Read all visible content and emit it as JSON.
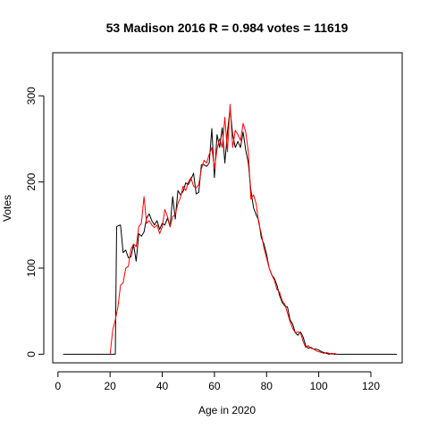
{
  "chart_data": {
    "type": "line",
    "title": "53 Madison 2016 R = 0.984 votes = 11619",
    "xlabel": "Age in 2020",
    "ylabel": "Votes",
    "xlim": [
      -2,
      132
    ],
    "ylim": [
      -10,
      350
    ],
    "x_ticks": [
      0,
      20,
      40,
      60,
      80,
      100,
      120
    ],
    "y_ticks": [
      0,
      100,
      200,
      300
    ],
    "grid": false,
    "series": [
      {
        "color": "#000000",
        "points": [
          [
            2,
            0
          ],
          [
            22,
            0
          ],
          [
            22.5,
            148
          ],
          [
            23,
            149
          ],
          [
            24,
            150
          ],
          [
            25,
            118
          ],
          [
            26,
            121
          ],
          [
            27,
            112
          ],
          [
            28,
            113
          ],
          [
            29,
            127
          ],
          [
            30,
            108
          ],
          [
            31,
            140
          ],
          [
            32,
            137
          ],
          [
            33,
            142
          ],
          [
            34,
            158
          ],
          [
            35,
            163
          ],
          [
            36,
            155
          ],
          [
            37,
            150
          ],
          [
            38,
            155
          ],
          [
            39,
            145
          ],
          [
            40,
            152
          ],
          [
            41,
            150
          ],
          [
            42,
            158
          ],
          [
            43,
            148
          ],
          [
            44,
            183
          ],
          [
            45,
            157
          ],
          [
            46,
            190
          ],
          [
            47,
            185
          ],
          [
            48,
            189
          ],
          [
            49,
            199
          ],
          [
            50,
            197
          ],
          [
            51,
            203
          ],
          [
            52,
            210
          ],
          [
            53,
            186
          ],
          [
            54,
            188
          ],
          [
            55,
            220
          ],
          [
            56,
            220
          ],
          [
            57,
            218
          ],
          [
            58,
            222
          ],
          [
            59,
            262
          ],
          [
            60,
            205
          ],
          [
            61,
            255
          ],
          [
            62,
            240
          ],
          [
            63,
            263
          ],
          [
            64,
            222
          ],
          [
            65,
            258
          ],
          [
            66,
            285
          ],
          [
            67,
            255
          ],
          [
            68,
            240
          ],
          [
            69,
            247
          ],
          [
            70,
            240
          ],
          [
            71,
            258
          ],
          [
            72,
            237
          ],
          [
            73,
            222
          ],
          [
            74,
            190
          ],
          [
            75,
            170
          ],
          [
            76,
            162
          ],
          [
            77,
            155
          ],
          [
            78,
            135
          ],
          [
            79,
            128
          ],
          [
            80,
            116
          ],
          [
            81,
            100
          ],
          [
            82,
            92
          ],
          [
            83,
            88
          ],
          [
            84,
            80
          ],
          [
            85,
            68
          ],
          [
            86,
            60
          ],
          [
            87,
            56
          ],
          [
            88,
            55
          ],
          [
            89,
            40
          ],
          [
            90,
            35
          ],
          [
            91,
            25
          ],
          [
            92,
            22
          ],
          [
            93,
            26
          ],
          [
            94,
            20
          ],
          [
            95,
            10
          ],
          [
            96,
            7
          ],
          [
            97,
            8
          ],
          [
            98,
            6
          ],
          [
            99,
            6
          ],
          [
            100,
            5
          ],
          [
            101,
            3
          ],
          [
            102,
            2
          ],
          [
            103,
            1
          ],
          [
            104,
            0
          ],
          [
            105,
            1
          ],
          [
            106,
            0
          ],
          [
            110,
            0
          ],
          [
            130,
            0
          ]
        ]
      },
      {
        "color": "#ff0000",
        "points": [
          [
            20,
            0
          ],
          [
            21,
            28
          ],
          [
            22,
            40
          ],
          [
            23,
            55
          ],
          [
            24,
            80
          ],
          [
            25,
            83
          ],
          [
            26,
            100
          ],
          [
            27,
            102
          ],
          [
            28,
            122
          ],
          [
            29,
            128
          ],
          [
            30,
            125
          ],
          [
            31,
            148
          ],
          [
            32,
            152
          ],
          [
            33,
            183
          ],
          [
            34,
            152
          ],
          [
            35,
            155
          ],
          [
            36,
            150
          ],
          [
            37,
            147
          ],
          [
            38,
            150
          ],
          [
            39,
            140
          ],
          [
            40,
            148
          ],
          [
            41,
            168
          ],
          [
            42,
            160
          ],
          [
            43,
            148
          ],
          [
            44,
            160
          ],
          [
            45,
            162
          ],
          [
            46,
            175
          ],
          [
            47,
            182
          ],
          [
            48,
            195
          ],
          [
            49,
            190
          ],
          [
            50,
            200
          ],
          [
            51,
            205
          ],
          [
            52,
            195
          ],
          [
            53,
            193
          ],
          [
            54,
            197
          ],
          [
            55,
            215
          ],
          [
            56,
            225
          ],
          [
            57,
            222
          ],
          [
            58,
            232
          ],
          [
            59,
            240
          ],
          [
            60,
            215
          ],
          [
            61,
            238
          ],
          [
            62,
            250
          ],
          [
            63,
            240
          ],
          [
            64,
            275
          ],
          [
            65,
            235
          ],
          [
            66,
            290
          ],
          [
            67,
            240
          ],
          [
            68,
            260
          ],
          [
            69,
            255
          ],
          [
            70,
            248
          ],
          [
            71,
            268
          ],
          [
            72,
            258
          ],
          [
            73,
            235
          ],
          [
            74,
            180
          ],
          [
            75,
            185
          ],
          [
            76,
            175
          ],
          [
            77,
            152
          ],
          [
            78,
            140
          ],
          [
            79,
            123
          ],
          [
            80,
            112
          ],
          [
            81,
            100
          ],
          [
            82,
            92
          ],
          [
            83,
            86
          ],
          [
            84,
            75
          ],
          [
            85,
            72
          ],
          [
            86,
            62
          ],
          [
            87,
            58
          ],
          [
            88,
            48
          ],
          [
            89,
            38
          ],
          [
            90,
            30
          ],
          [
            91,
            25
          ],
          [
            92,
            26
          ],
          [
            93,
            25
          ],
          [
            94,
            15
          ],
          [
            95,
            8
          ],
          [
            96,
            10
          ],
          [
            97,
            7
          ],
          [
            98,
            6
          ],
          [
            99,
            4
          ],
          [
            100,
            3
          ],
          [
            101,
            2
          ],
          [
            102,
            1
          ],
          [
            103,
            2
          ],
          [
            104,
            1
          ],
          [
            105,
            0
          ],
          [
            106,
            1
          ],
          [
            107,
            0
          ]
        ]
      }
    ]
  }
}
